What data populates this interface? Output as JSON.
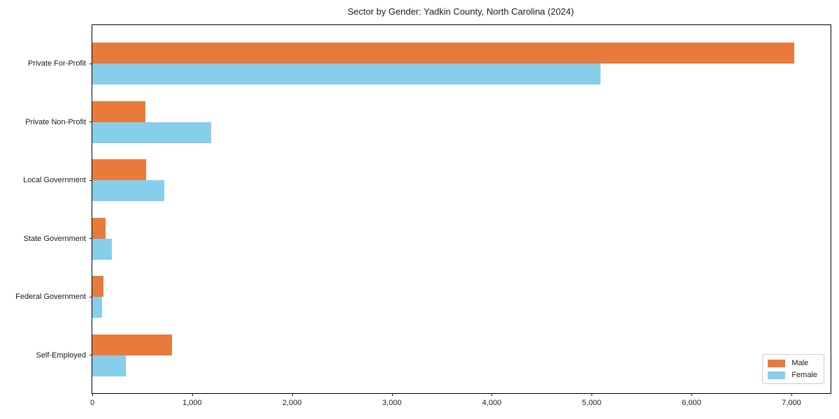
{
  "chart_data": {
    "type": "bar",
    "orientation": "horizontal",
    "title": "Sector by Gender: Yadkin County, North Carolina (2024)",
    "categories": [
      "Private For-Profit",
      "Private Non-Profit",
      "Local Government",
      "State Government",
      "Federal Government",
      "Self-Employed"
    ],
    "series": [
      {
        "name": "Male",
        "color": "#e87a3c",
        "values": [
          7030,
          530,
          540,
          130,
          110,
          795
        ]
      },
      {
        "name": "Female",
        "color": "#87ceeb",
        "values": [
          5090,
          1190,
          720,
          195,
          95,
          335
        ]
      }
    ],
    "xlim": [
      0,
      7392
    ],
    "xticks": [
      0,
      1000,
      2000,
      3000,
      4000,
      5000,
      6000,
      7000
    ],
    "xtick_labels": [
      "0",
      "1,000",
      "2,000",
      "3,000",
      "4,000",
      "5,000",
      "6,000",
      "7,000"
    ],
    "xlabel": "",
    "ylabel": "",
    "grid": false,
    "legend": {
      "position": "lower right",
      "entries": [
        "Male",
        "Female"
      ]
    }
  }
}
